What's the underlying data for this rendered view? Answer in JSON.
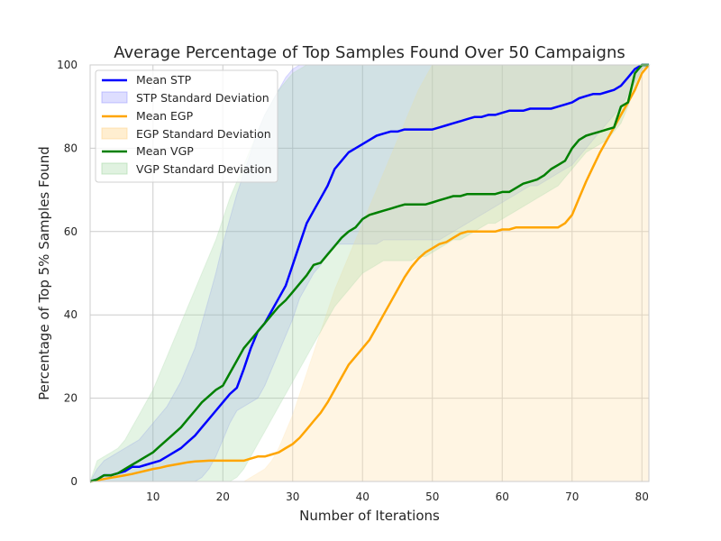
{
  "chart_data": {
    "type": "line",
    "title": "Average Percentage of Top Samples Found Over 50 Campaigns",
    "xlabel": "Number of Iterations",
    "ylabel": "Percentage of Top 5% Samples Found",
    "xlim": [
      1,
      81
    ],
    "ylim": [
      0,
      100
    ],
    "xticks": [
      "10",
      "20",
      "30",
      "40",
      "50",
      "60",
      "70",
      "80"
    ],
    "yticks": [
      "0",
      "20",
      "40",
      "60",
      "80",
      "100"
    ],
    "grid": true,
    "legend_position": "top-left",
    "x": [
      1,
      2,
      3,
      4,
      5,
      6,
      7,
      8,
      9,
      10,
      11,
      12,
      13,
      14,
      15,
      16,
      17,
      18,
      19,
      20,
      21,
      22,
      23,
      24,
      25,
      26,
      27,
      28,
      29,
      30,
      31,
      32,
      33,
      34,
      35,
      36,
      37,
      38,
      39,
      40,
      41,
      42,
      43,
      44,
      45,
      46,
      47,
      48,
      49,
      50,
      51,
      52,
      53,
      54,
      55,
      56,
      57,
      58,
      59,
      60,
      61,
      62,
      63,
      64,
      65,
      66,
      67,
      68,
      69,
      70,
      71,
      72,
      73,
      74,
      75,
      76,
      77,
      78,
      79,
      80,
      81
    ],
    "series": [
      {
        "name": "Mean STP",
        "band_name": "STP Standard Deviation",
        "color": "#0000ff",
        "band_color": "#7a7aff",
        "mean": [
          0,
          0.5,
          1.5,
          1.5,
          2,
          2.5,
          3.5,
          3.5,
          4,
          4.5,
          5,
          6,
          7,
          8,
          9.5,
          11,
          13,
          15,
          17,
          19,
          21,
          22.5,
          27,
          32,
          36,
          38,
          41,
          44,
          47,
          52,
          57,
          62,
          65,
          68,
          71,
          75,
          77,
          79,
          80,
          81,
          82,
          83,
          83.5,
          84,
          84,
          84.5,
          84.5,
          84.5,
          84.5,
          84.5,
          85,
          85.5,
          86,
          86.5,
          87,
          87.5,
          87.5,
          88,
          88,
          88.5,
          89,
          89,
          89,
          89.5,
          89.5,
          89.5,
          89.5,
          90,
          90.5,
          91,
          92,
          92.5,
          93,
          93,
          93.5,
          94,
          95,
          97,
          99,
          100,
          100
        ],
        "lower": [
          0,
          0,
          0,
          0,
          0,
          0,
          0,
          0,
          0,
          0,
          0,
          0,
          0,
          0,
          0,
          0,
          1,
          3,
          6,
          10,
          14,
          17,
          18,
          19,
          20,
          23,
          27,
          31,
          35,
          39,
          44,
          47,
          50,
          52,
          55,
          57,
          57,
          57,
          57,
          57,
          57,
          57,
          58,
          58,
          58,
          58,
          58,
          58,
          58,
          58,
          58,
          59,
          60,
          61,
          62,
          63,
          64,
          65,
          66,
          67,
          68,
          69,
          70,
          71,
          71,
          72,
          73,
          74,
          75,
          76,
          78,
          80,
          82,
          84,
          86,
          88,
          90,
          93,
          96,
          99,
          100
        ],
        "upper": [
          0,
          3,
          5,
          6,
          7,
          8,
          9,
          10,
          12,
          14,
          16,
          18,
          21,
          24,
          28,
          32,
          38,
          44,
          50,
          57,
          63,
          69,
          74,
          79,
          84,
          88,
          91,
          94,
          97,
          99,
          100,
          100,
          100,
          100,
          100,
          100,
          100,
          100,
          100,
          100,
          100,
          100,
          100,
          100,
          100,
          100,
          100,
          100,
          100,
          100,
          100,
          100,
          100,
          100,
          100,
          100,
          100,
          100,
          100,
          100,
          100,
          100,
          100,
          100,
          100,
          100,
          100,
          100,
          100,
          100,
          100,
          100,
          100,
          100,
          100,
          100,
          100,
          100,
          100,
          100,
          100
        ]
      },
      {
        "name": "Mean EGP",
        "band_name": "EGP Standard Deviation",
        "color": "#ffa500",
        "band_color": "#ffe3b0",
        "mean": [
          0,
          0.3,
          0.6,
          0.9,
          1.2,
          1.5,
          1.8,
          2.2,
          2.6,
          3,
          3.3,
          3.7,
          4,
          4.3,
          4.6,
          4.8,
          4.9,
          5,
          5,
          5,
          5,
          5,
          5,
          5.5,
          6,
          6,
          6.5,
          7,
          8,
          9,
          10.5,
          12.5,
          14.5,
          16.5,
          19,
          22,
          25,
          28,
          30,
          32,
          34,
          37,
          40,
          43,
          46,
          49,
          51.5,
          53.5,
          55,
          56,
          57,
          57.5,
          58.5,
          59.5,
          60,
          60,
          60,
          60,
          60,
          60.5,
          60.5,
          61,
          61,
          61,
          61,
          61,
          61,
          61,
          62,
          64,
          68,
          72,
          75.5,
          79,
          82,
          85,
          88,
          91,
          94,
          98,
          100
        ],
        "lower": [
          0,
          0,
          0,
          0,
          0,
          0,
          0,
          0,
          0,
          0,
          0,
          0,
          0,
          0,
          0,
          0,
          0,
          0,
          0,
          0,
          0,
          0,
          0,
          0,
          0,
          0,
          0,
          0,
          0,
          0,
          0,
          0,
          0,
          0,
          0,
          0,
          0,
          0,
          0,
          0,
          0,
          0,
          0,
          0,
          0,
          0,
          0,
          0,
          0,
          0,
          0,
          0,
          0,
          0,
          0,
          0,
          0,
          0,
          0,
          0,
          0,
          0,
          0,
          0,
          0,
          0,
          0,
          0,
          0,
          0,
          0,
          0,
          0,
          0,
          0,
          0,
          0,
          0,
          0,
          0,
          0
        ],
        "upper": [
          0,
          0,
          0,
          0,
          0,
          0,
          0,
          0,
          0,
          0,
          0,
          0,
          0,
          0,
          0,
          0,
          0,
          0,
          0,
          0,
          0,
          0,
          0,
          1,
          2,
          3,
          5,
          8,
          12,
          16,
          21,
          26,
          31,
          36,
          41,
          46,
          50,
          54,
          58,
          62,
          66,
          70,
          74,
          78,
          82,
          86,
          90,
          94,
          97,
          100,
          100,
          100,
          100,
          100,
          100,
          100,
          100,
          100,
          100,
          100,
          100,
          100,
          100,
          100,
          100,
          100,
          100,
          100,
          100,
          100,
          100,
          100,
          100,
          100,
          100,
          100,
          100,
          100,
          100,
          100,
          100
        ]
      },
      {
        "name": "Mean VGP",
        "band_name": "VGP Standard Deviation",
        "color": "#008000",
        "band_color": "#a6d9a6",
        "mean": [
          0,
          0.5,
          1.5,
          1.5,
          2,
          3,
          4,
          5,
          6,
          7,
          8.5,
          10,
          11.5,
          13,
          15,
          17,
          19,
          20.5,
          22,
          23,
          26,
          29,
          32,
          34,
          36,
          38,
          40,
          42,
          43.5,
          45.5,
          47.5,
          49.5,
          52,
          52.5,
          54.5,
          56.5,
          58.5,
          60,
          61,
          63,
          64,
          64.5,
          65,
          65.5,
          66,
          66.5,
          66.5,
          66.5,
          66.5,
          67,
          67.5,
          68,
          68.5,
          68.5,
          69,
          69,
          69,
          69,
          69,
          69.5,
          69.5,
          70.5,
          71.5,
          72,
          72.5,
          73.5,
          75,
          76,
          77,
          80,
          82,
          83,
          83.5,
          84,
          84.5,
          85,
          90,
          91,
          98,
          100,
          100
        ],
        "lower": [
          0,
          0,
          0,
          0,
          0,
          0,
          0,
          0,
          0,
          0,
          0,
          0,
          0,
          0,
          0,
          0,
          0,
          0,
          0,
          0,
          0,
          1,
          3,
          6,
          9,
          12,
          15,
          18,
          21,
          24,
          27,
          30,
          33,
          36,
          39,
          42,
          44,
          46,
          48,
          50,
          51,
          52,
          53,
          53,
          53,
          53,
          53,
          54,
          54,
          55,
          56,
          57,
          58,
          58,
          59,
          60,
          61,
          62,
          62,
          63,
          64,
          65,
          66,
          67,
          68,
          69,
          70,
          71,
          73,
          75,
          77,
          79,
          80,
          81,
          82,
          84,
          86,
          90,
          95,
          99,
          100
        ],
        "upper": [
          0,
          5,
          6,
          7,
          8,
          10,
          13,
          16,
          19,
          22,
          26,
          30,
          34,
          38,
          42,
          46,
          50,
          54,
          58,
          63,
          68,
          72,
          76,
          80,
          84,
          88,
          91,
          94,
          96,
          98,
          99,
          100,
          100,
          100,
          100,
          100,
          100,
          100,
          100,
          100,
          100,
          100,
          100,
          100,
          100,
          100,
          100,
          100,
          100,
          100,
          100,
          100,
          100,
          100,
          100,
          100,
          100,
          100,
          100,
          100,
          100,
          100,
          100,
          100,
          100,
          100,
          100,
          100,
          100,
          100,
          100,
          100,
          100,
          100,
          100,
          100,
          100,
          100,
          100,
          100,
          100
        ]
      }
    ]
  }
}
